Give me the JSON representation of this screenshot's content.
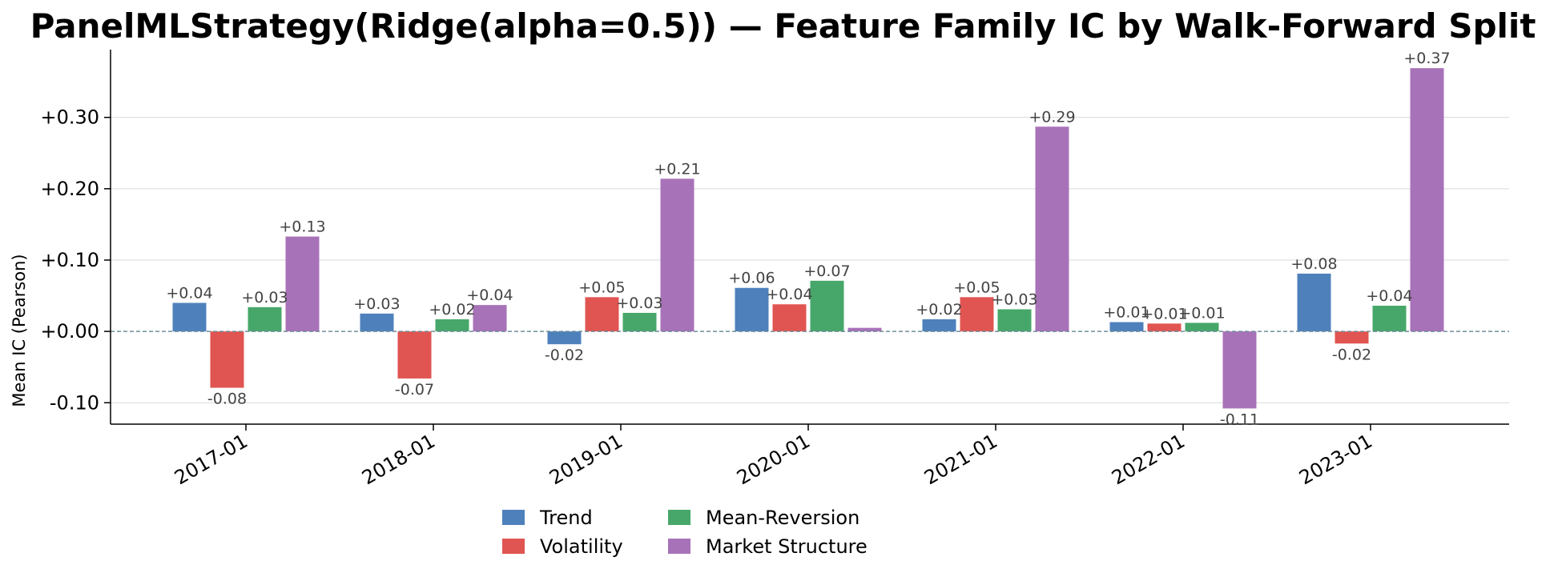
{
  "title": "PanelMLStrategy(Ridge(alpha=0.5)) — Feature Family IC by Walk-Forward Split",
  "chart_data": {
    "type": "bar",
    "title": "PanelMLStrategy(Ridge(alpha=0.5)) — Feature Family IC by Walk-Forward Split",
    "xlabel": "",
    "ylabel": "Mean IC (Pearson)",
    "ylim": [
      -0.13,
      0.395
    ],
    "yticks": [
      -0.1,
      0.0,
      0.1,
      0.2,
      0.3
    ],
    "ytick_labels": [
      "-0.10",
      "+0.00",
      "+0.10",
      "+0.20",
      "+0.30"
    ],
    "grid": "horizontal",
    "zero_line": "dashed",
    "legend_position": "bottom-center",
    "categories": [
      "2017-01",
      "2018-01",
      "2019-01",
      "2020-01",
      "2021-01",
      "2022-01",
      "2023-01"
    ],
    "series": [
      {
        "name": "Trend",
        "color": "#4e81bc",
        "values": [
          0.04,
          0.025,
          -0.018,
          0.061,
          0.017,
          0.013,
          0.081
        ],
        "labels": [
          "+0.04",
          "+0.03",
          "-0.02",
          "+0.06",
          "+0.02",
          "+0.01",
          "+0.08"
        ]
      },
      {
        "name": "Volatility",
        "color": "#e05551",
        "values": [
          -0.079,
          -0.066,
          0.048,
          0.038,
          0.048,
          0.011,
          -0.017
        ],
        "labels": [
          "-0.08",
          "-0.07",
          "+0.05",
          "+0.04",
          "+0.05",
          "+0.01",
          "-0.02"
        ]
      },
      {
        "name": "Mean-Reversion",
        "color": "#47a76a",
        "values": [
          0.034,
          0.017,
          0.026,
          0.071,
          0.031,
          0.012,
          0.036
        ],
        "labels": [
          "+0.03",
          "+0.02",
          "+0.03",
          "+0.07",
          "+0.03",
          "+0.01",
          "+0.04"
        ]
      },
      {
        "name": "Market Structure",
        "color": "#a872b8",
        "values": [
          0.133,
          0.037,
          0.214,
          0.005,
          0.287,
          -0.108,
          0.369
        ],
        "labels": [
          "+0.13",
          "+0.04",
          "+0.21",
          "",
          "+0.29",
          "-0.11",
          "+0.37"
        ]
      }
    ]
  }
}
